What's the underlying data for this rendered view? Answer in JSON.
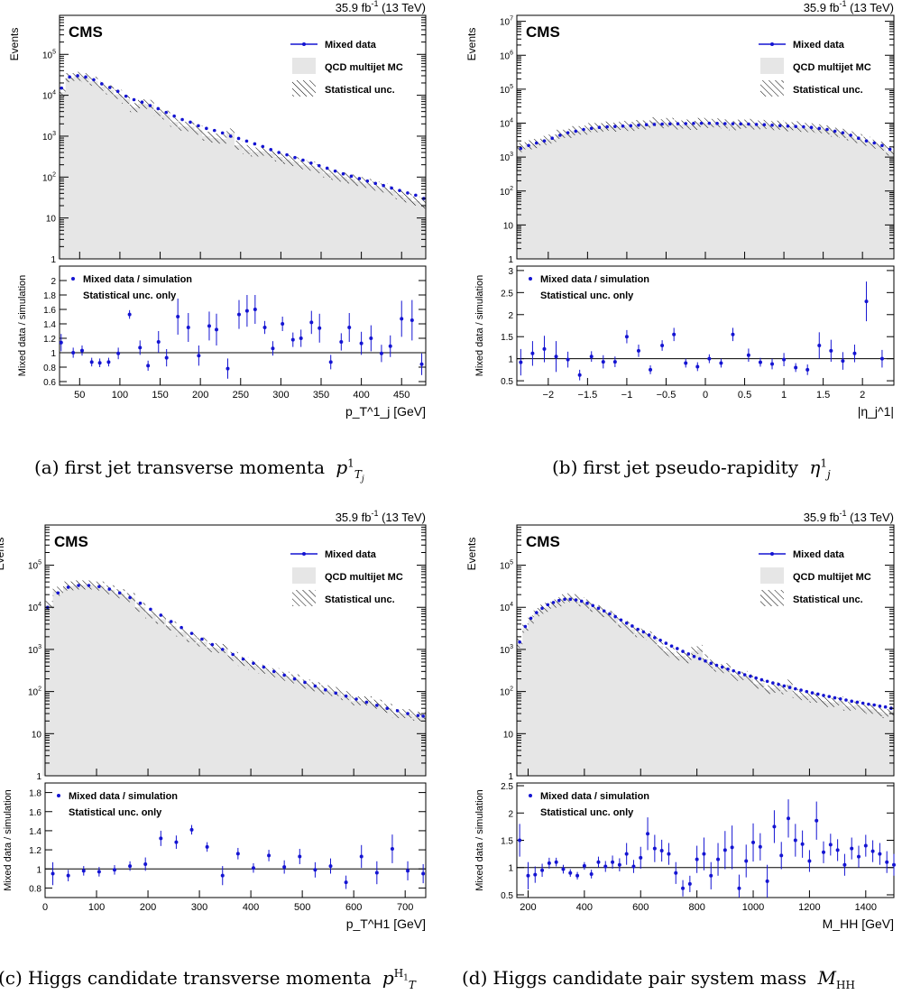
{
  "lumi_label": "35.9 fb",
  "lumi_exponent": "-1",
  "energy_label": " (13 TeV)",
  "cms_label": "CMS",
  "legend_top": [
    "Mixed data",
    "QCD multijet MC",
    "Statistical unc."
  ],
  "legend_ratio": [
    "Mixed data / simulation",
    "Statistical unc. only"
  ],
  "y_label_top": "Events",
  "y_label_ratio": "Mixed data / simulation",
  "colors": {
    "data": "#1414d2",
    "mc_fill": "#e6e6e6",
    "frame": "#000000"
  },
  "captions": [
    {
      "label": "(a)",
      "text": "first jet transverse momenta",
      "math": "p¹Tj"
    },
    {
      "label": "(b)",
      "text": "first jet pseudo-rapidity",
      "math": "η¹j"
    },
    {
      "label": "(c)",
      "text": "Higgs candidate transverse momenta",
      "math": "pT^H1"
    },
    {
      "label": "(d)",
      "text": "Higgs candidate pair system mass",
      "math": "MHH"
    }
  ],
  "chart_data": [
    {
      "type": "line",
      "id": "a",
      "xlabel": "p_T^1_j [GeV]",
      "xlim": [
        25,
        480
      ],
      "ylim_top": [
        1,
        900000
      ],
      "ylog": true,
      "yticks_top": [
        "1",
        "10",
        "10^2",
        "10^3",
        "10^4",
        "10^5"
      ],
      "xticks": [
        "50",
        "100",
        "150",
        "200",
        "250",
        "300",
        "350",
        "400",
        "450"
      ],
      "ratio_ylim": [
        0.55,
        2.2
      ],
      "ratio_yticks": [
        "0.6",
        "0.8",
        "1",
        "1.2",
        "1.4",
        "1.6",
        "1.8",
        "2"
      ],
      "x": [
        27.5,
        37.5,
        47.5,
        57.5,
        67.5,
        77.5,
        87.5,
        97.5,
        107.5,
        117.5,
        127.5,
        137.5,
        147.5,
        157.5,
        167.5,
        177.5,
        187.5,
        197.5,
        207.5,
        217.5,
        227.5,
        237.5,
        247.5,
        257.5,
        267.5,
        277.5,
        287.5,
        297.5,
        307.5,
        317.5,
        327.5,
        337.5,
        347.5,
        357.5,
        367.5,
        377.5,
        387.5,
        397.5,
        407.5,
        417.5,
        427.5,
        437.5,
        447.5,
        457.5,
        467.5,
        477.5
      ],
      "data": [
        15000,
        28000,
        30000,
        28000,
        24000,
        19000,
        15500,
        12500,
        9500,
        7800,
        6800,
        5600,
        4700,
        3800,
        3100,
        2550,
        2200,
        1800,
        1550,
        1380,
        1200,
        1000,
        880,
        760,
        650,
        560,
        470,
        400,
        350,
        300,
        260,
        220,
        190,
        165,
        140,
        120,
        105,
        92,
        80,
        70,
        62,
        54,
        47,
        41,
        36,
        30
      ],
      "mc": [
        12000,
        27000,
        29000,
        27000,
        22000,
        16500,
        13500,
        10500,
        8000,
        5000,
        6200,
        6000,
        4000,
        3300,
        2200,
        1750,
        1700,
        1400,
        1000,
        900,
        850,
        1200,
        600,
        470,
        410,
        430,
        380,
        310,
        270,
        240,
        200,
        185,
        160,
        125,
        110,
        100,
        90,
        78,
        70,
        60,
        54,
        46,
        37,
        31,
        26,
        22
      ],
      "ratio_x": [
        27,
        42,
        53,
        65,
        75,
        86,
        98,
        112,
        125,
        135,
        148,
        158,
        172,
        185,
        198,
        211,
        220,
        234,
        248,
        258,
        268,
        280,
        290,
        302,
        315,
        325,
        338,
        348,
        362,
        375,
        385,
        400,
        412,
        425,
        436,
        450,
        463,
        475
      ],
      "ratio": [
        1.14,
        1.0,
        1.03,
        0.87,
        0.86,
        0.87,
        0.99,
        1.53,
        1.07,
        0.82,
        1.15,
        0.93,
        1.5,
        1.35,
        0.96,
        1.37,
        1.32,
        0.78,
        1.53,
        1.58,
        1.6,
        1.35,
        1.06,
        1.4,
        1.18,
        1.2,
        1.42,
        1.34,
        0.87,
        1.15,
        1.35,
        1.13,
        1.2,
        0.99,
        1.09,
        1.47,
        1.45,
        0.84
      ],
      "ratio_err": [
        0.12,
        0.07,
        0.07,
        0.06,
        0.06,
        0.06,
        0.08,
        0.06,
        0.1,
        0.07,
        0.15,
        0.12,
        0.25,
        0.2,
        0.14,
        0.2,
        0.22,
        0.14,
        0.2,
        0.22,
        0.2,
        0.09,
        0.1,
        0.1,
        0.1,
        0.12,
        0.16,
        0.2,
        0.1,
        0.12,
        0.2,
        0.16,
        0.18,
        0.12,
        0.15,
        0.25,
        0.28,
        0.15
      ]
    },
    {
      "type": "line",
      "id": "b",
      "xlabel": "|η_j^1|",
      "xlim": [
        -2.4,
        2.4
      ],
      "ylim_top": [
        1,
        15000000
      ],
      "ylog": true,
      "yticks_top": [
        "1",
        "10",
        "10^2",
        "10^3",
        "10^4",
        "10^5",
        "10^6",
        "10^7"
      ],
      "xticks": [
        "-2",
        "-1.5",
        "-1",
        "-0.5",
        "0",
        "0.5",
        "1",
        "1.5",
        "2"
      ],
      "ratio_ylim": [
        0.4,
        3.1
      ],
      "ratio_yticks": [
        "0.5",
        "1",
        "1.5",
        "2",
        "2.5",
        "3"
      ],
      "x": [
        -2.35,
        -2.25,
        -2.15,
        -2.05,
        -1.95,
        -1.85,
        -1.75,
        -1.65,
        -1.55,
        -1.45,
        -1.35,
        -1.25,
        -1.15,
        -1.05,
        -0.95,
        -0.85,
        -0.75,
        -0.65,
        -0.55,
        -0.45,
        -0.35,
        -0.25,
        -0.15,
        -0.05,
        0.05,
        0.15,
        0.25,
        0.35,
        0.45,
        0.55,
        0.65,
        0.75,
        0.85,
        0.95,
        1.05,
        1.15,
        1.25,
        1.35,
        1.45,
        1.55,
        1.65,
        1.75,
        1.85,
        1.95,
        2.05,
        2.15,
        2.25,
        2.35
      ],
      "data": [
        1800,
        2200,
        2600,
        3000,
        3600,
        4400,
        5200,
        5800,
        6500,
        7000,
        7500,
        7800,
        8000,
        8200,
        8400,
        8700,
        9000,
        9200,
        9400,
        9500,
        9600,
        9700,
        9800,
        9900,
        9900,
        9800,
        9700,
        9600,
        9500,
        9400,
        9200,
        9000,
        8700,
        8400,
        8200,
        8000,
        7800,
        7500,
        7000,
        6500,
        5800,
        5200,
        4400,
        3600,
        3000,
        2600,
        2200,
        1700
      ],
      "mc": [
        1900,
        2300,
        2500,
        3100,
        3400,
        4700,
        5000,
        6000,
        6200,
        7400,
        7300,
        8200,
        7600,
        8600,
        8000,
        9100,
        8800,
        11000,
        9600,
        10500,
        8800,
        9400,
        8600,
        10500,
        9800,
        10200,
        9500,
        8400,
        9300,
        9800,
        8800,
        9200,
        8400,
        8700,
        7800,
        8400,
        7500,
        7300,
        6800,
        6300,
        5400,
        5000,
        4200,
        3500,
        2900,
        2400,
        2100,
        1500
      ],
      "ratio_x": [
        -2.35,
        -2.2,
        -2.05,
        -1.9,
        -1.75,
        -1.6,
        -1.45,
        -1.3,
        -1.15,
        -1.0,
        -0.85,
        -0.7,
        -0.55,
        -0.4,
        -0.25,
        -0.1,
        0.05,
        0.2,
        0.35,
        0.55,
        0.7,
        0.85,
        1.0,
        1.15,
        1.3,
        1.45,
        1.6,
        1.75,
        1.9,
        2.05,
        2.25
      ],
      "ratio": [
        0.92,
        1.12,
        1.22,
        1.05,
        0.98,
        0.63,
        1.05,
        0.93,
        0.93,
        1.5,
        1.18,
        0.75,
        1.3,
        1.55,
        0.9,
        0.82,
        1.0,
        0.9,
        1.55,
        1.08,
        0.92,
        0.88,
        0.98,
        0.8,
        0.75,
        1.3,
        1.18,
        0.95,
        1.12,
        2.3,
        1.0
      ],
      "ratio_err": [
        0.3,
        0.28,
        0.3,
        0.35,
        0.18,
        0.12,
        0.12,
        0.15,
        0.12,
        0.15,
        0.14,
        0.1,
        0.12,
        0.15,
        0.1,
        0.1,
        0.1,
        0.1,
        0.15,
        0.15,
        0.1,
        0.12,
        0.15,
        0.1,
        0.12,
        0.3,
        0.25,
        0.2,
        0.2,
        0.45,
        0.2
      ]
    },
    {
      "type": "line",
      "id": "c",
      "xlabel": "p_T^H1 [GeV]",
      "xlim": [
        0,
        740
      ],
      "ylim_top": [
        1,
        900000
      ],
      "ylog": true,
      "yticks_top": [
        "1",
        "10",
        "10^2",
        "10^3",
        "10^4",
        "10^5"
      ],
      "xticks": [
        "0",
        "100",
        "200",
        "300",
        "400",
        "500",
        "600",
        "700"
      ],
      "ratio_ylim": [
        0.7,
        1.9
      ],
      "ratio_yticks": [
        "0.8",
        "1",
        "1.2",
        "1.4",
        "1.6",
        "1.8"
      ],
      "x": [
        5,
        25,
        45,
        65,
        85,
        105,
        125,
        145,
        165,
        185,
        205,
        225,
        245,
        265,
        285,
        305,
        325,
        345,
        365,
        385,
        405,
        425,
        445,
        465,
        485,
        505,
        525,
        545,
        565,
        585,
        605,
        625,
        645,
        665,
        685,
        705,
        725,
        735
      ],
      "data": [
        10000,
        22000,
        30000,
        33000,
        33000,
        31000,
        27000,
        22000,
        17000,
        12500,
        9000,
        6500,
        4600,
        3300,
        2400,
        1750,
        1300,
        1000,
        760,
        590,
        470,
        380,
        300,
        245,
        200,
        165,
        135,
        110,
        92,
        78,
        66,
        56,
        47,
        40,
        35,
        30,
        27,
        26
      ],
      "mc": [
        11000,
        24000,
        32000,
        34000,
        34000,
        32000,
        26000,
        21000,
        17000,
        10000,
        7000,
        5200,
        3600,
        2600,
        1900,
        1500,
        1100,
        1050,
        680,
        520,
        420,
        340,
        280,
        230,
        200,
        150,
        130,
        110,
        100,
        80,
        60,
        60,
        50,
        40,
        30,
        30,
        26,
        25
      ],
      "ratio_x": [
        15,
        45,
        75,
        105,
        135,
        165,
        195,
        225,
        255,
        285,
        315,
        345,
        375,
        405,
        435,
        465,
        495,
        525,
        555,
        585,
        615,
        645,
        675,
        705,
        735
      ],
      "ratio": [
        0.95,
        0.93,
        0.98,
        0.97,
        0.99,
        1.03,
        1.05,
        1.32,
        1.28,
        1.41,
        1.23,
        0.93,
        1.16,
        1.01,
        1.14,
        1.02,
        1.13,
        0.99,
        1.03,
        0.86,
        1.13,
        0.96,
        1.21,
        0.98,
        0.95
      ],
      "ratio_err": [
        0.12,
        0.06,
        0.05,
        0.05,
        0.05,
        0.05,
        0.07,
        0.08,
        0.07,
        0.05,
        0.05,
        0.1,
        0.06,
        0.05,
        0.06,
        0.07,
        0.08,
        0.08,
        0.08,
        0.07,
        0.12,
        0.12,
        0.15,
        0.1,
        0.1
      ]
    },
    {
      "type": "line",
      "id": "d",
      "xlabel": "M_HH [GeV]",
      "xlim": [
        160,
        1500
      ],
      "ylim_top": [
        1,
        900000
      ],
      "ylog": true,
      "yticks_top": [
        "1",
        "10",
        "10^2",
        "10^3",
        "10^4",
        "10^5"
      ],
      "xticks": [
        "200",
        "400",
        "600",
        "800",
        "1000",
        "1200",
        "1400"
      ],
      "ratio_ylim": [
        0.45,
        2.55
      ],
      "ratio_yticks": [
        "0.5",
        "1",
        "1.5",
        "2",
        "2.5"
      ],
      "x": [
        170,
        190,
        210,
        230,
        250,
        270,
        290,
        310,
        330,
        350,
        370,
        390,
        410,
        430,
        450,
        470,
        490,
        510,
        530,
        550,
        570,
        590,
        610,
        630,
        650,
        670,
        690,
        710,
        730,
        750,
        770,
        790,
        810,
        830,
        850,
        870,
        890,
        910,
        930,
        950,
        970,
        990,
        1010,
        1030,
        1050,
        1070,
        1090,
        1110,
        1130,
        1150,
        1170,
        1190,
        1210,
        1230,
        1250,
        1270,
        1290,
        1310,
        1330,
        1350,
        1370,
        1390,
        1410,
        1430,
        1450,
        1470,
        1490
      ],
      "data": [
        1500,
        3500,
        5500,
        7500,
        9500,
        11500,
        13000,
        14500,
        15500,
        15500,
        15000,
        14000,
        12500,
        11000,
        9500,
        8200,
        7000,
        6000,
        5000,
        4200,
        3600,
        3000,
        2600,
        2200,
        1900,
        1650,
        1400,
        1200,
        1050,
        900,
        780,
        680,
        600,
        530,
        470,
        420,
        380,
        340,
        310,
        280,
        250,
        230,
        210,
        190,
        175,
        160,
        148,
        136,
        125,
        116,
        108,
        100,
        93,
        87,
        81,
        76,
        71,
        67,
        63,
        59,
        56,
        53,
        50,
        48,
        45,
        43,
        40
      ],
      "mc": [
        1400,
        3200,
        5000,
        7500,
        9000,
        10000,
        12000,
        13500,
        16000,
        17000,
        16000,
        13500,
        12000,
        10000,
        8800,
        7500,
        6500,
        5500,
        4200,
        3700,
        3000,
        2500,
        2400,
        2100,
        1700,
        1200,
        900,
        850,
        700,
        700,
        600,
        900,
        1000,
        600,
        450,
        380,
        350,
        370,
        250,
        230,
        240,
        200,
        150,
        160,
        110,
        120,
        130,
        110,
        150,
        90,
        80,
        80,
        70,
        70,
        60,
        55,
        55,
        60,
        45,
        45,
        48,
        40,
        38,
        38,
        33,
        30,
        35
      ],
      "ratio_x": [
        170,
        200,
        225,
        250,
        275,
        300,
        325,
        350,
        375,
        400,
        425,
        450,
        475,
        500,
        525,
        550,
        575,
        600,
        625,
        650,
        675,
        700,
        725,
        750,
        775,
        800,
        825,
        850,
        875,
        900,
        925,
        950,
        975,
        1000,
        1025,
        1050,
        1075,
        1100,
        1125,
        1150,
        1175,
        1200,
        1225,
        1250,
        1275,
        1300,
        1325,
        1350,
        1375,
        1400,
        1425,
        1450,
        1475,
        1500
      ],
      "ratio": [
        1.5,
        0.85,
        0.87,
        0.95,
        1.08,
        1.1,
        0.97,
        0.9,
        0.85,
        1.03,
        0.88,
        1.1,
        1.02,
        1.1,
        1.05,
        1.25,
        1.02,
        1.18,
        1.62,
        1.35,
        1.31,
        1.25,
        0.9,
        0.62,
        0.7,
        1.15,
        1.25,
        0.85,
        1.15,
        1.32,
        1.37,
        0.62,
        1.12,
        1.46,
        1.38,
        0.75,
        1.75,
        1.22,
        1.9,
        1.5,
        1.43,
        1.12,
        1.86,
        1.28,
        1.42,
        1.32,
        1.05,
        1.35,
        1.2,
        1.4,
        1.3,
        1.25,
        1.1,
        1.05
      ],
      "ratio_err": [
        0.3,
        0.25,
        0.15,
        0.12,
        0.1,
        0.08,
        0.08,
        0.07,
        0.07,
        0.07,
        0.08,
        0.1,
        0.1,
        0.12,
        0.12,
        0.2,
        0.12,
        0.2,
        0.3,
        0.25,
        0.2,
        0.2,
        0.2,
        0.15,
        0.15,
        0.25,
        0.3,
        0.25,
        0.3,
        0.35,
        0.4,
        0.25,
        0.3,
        0.35,
        0.25,
        0.3,
        0.3,
        0.25,
        0.35,
        0.3,
        0.25,
        0.2,
        0.35,
        0.2,
        0.2,
        0.2,
        0.2,
        0.2,
        0.2,
        0.2,
        0.2,
        0.2,
        0.2,
        0.2
      ]
    }
  ]
}
